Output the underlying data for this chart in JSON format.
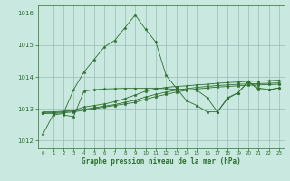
{
  "xlabel": "Graphe pression niveau de la mer (hPa)",
  "background_color": "#c8e8e0",
  "grid_color": "#9abcb8",
  "line_color": "#2d6e2d",
  "xlim": [
    -0.5,
    23.5
  ],
  "ylim": [
    1011.75,
    1016.25
  ],
  "yticks": [
    1012,
    1013,
    1014,
    1015,
    1016
  ],
  "xticks": [
    0,
    1,
    2,
    3,
    4,
    5,
    6,
    7,
    8,
    9,
    10,
    11,
    12,
    13,
    14,
    15,
    16,
    17,
    18,
    19,
    20,
    21,
    22,
    23
  ],
  "series1_x": [
    0,
    1,
    2,
    3,
    4,
    5,
    6,
    7,
    8,
    9,
    10,
    11,
    12,
    13,
    14,
    15,
    16,
    17,
    18,
    19,
    20,
    21,
    22,
    23
  ],
  "series1_y": [
    1012.2,
    1012.8,
    1012.85,
    1013.6,
    1014.15,
    1014.55,
    1014.95,
    1015.15,
    1015.55,
    1015.95,
    1015.5,
    1015.1,
    1014.05,
    1013.65,
    1013.25,
    1013.1,
    1012.9,
    1012.9,
    1013.35,
    1013.5,
    1013.85,
    1013.6,
    1013.6,
    1013.65
  ],
  "series2_x": [
    0,
    1,
    2,
    3,
    4,
    5,
    6,
    7,
    8,
    9,
    10,
    11,
    12,
    13,
    14,
    15,
    16,
    17,
    18,
    19,
    20,
    21,
    22,
    23
  ],
  "series2_y": [
    1012.85,
    1012.85,
    1012.87,
    1012.9,
    1012.95,
    1013.0,
    1013.05,
    1013.1,
    1013.15,
    1013.2,
    1013.3,
    1013.38,
    1013.45,
    1013.52,
    1013.58,
    1013.62,
    1013.65,
    1013.68,
    1013.7,
    1013.72,
    1013.74,
    1013.75,
    1013.76,
    1013.77
  ],
  "series3_x": [
    0,
    1,
    2,
    3,
    4,
    5,
    6,
    7,
    8,
    9,
    10,
    11,
    12,
    13,
    14,
    15,
    16,
    17,
    18,
    19,
    20,
    21,
    22,
    23
  ],
  "series3_y": [
    1012.87,
    1012.87,
    1012.9,
    1012.93,
    1012.98,
    1013.03,
    1013.08,
    1013.13,
    1013.2,
    1013.27,
    1013.37,
    1013.45,
    1013.52,
    1013.58,
    1013.63,
    1013.67,
    1013.7,
    1013.73,
    1013.75,
    1013.77,
    1013.78,
    1013.79,
    1013.8,
    1013.81
  ],
  "series4_x": [
    0,
    1,
    2,
    3,
    4,
    5,
    6,
    7,
    8,
    9,
    10,
    11,
    12,
    13,
    14,
    15,
    16,
    17,
    18,
    19,
    20,
    21,
    22,
    23
  ],
  "series4_y": [
    1012.9,
    1012.9,
    1012.92,
    1012.95,
    1013.05,
    1013.1,
    1013.15,
    1013.22,
    1013.32,
    1013.43,
    1013.55,
    1013.62,
    1013.67,
    1013.7,
    1013.72,
    1013.75,
    1013.77,
    1013.8,
    1013.82,
    1013.84,
    1013.86,
    1013.87,
    1013.88,
    1013.9
  ],
  "series5_x": [
    2,
    3,
    4,
    5,
    6,
    7,
    8,
    9,
    10,
    11,
    12,
    13,
    14,
    15,
    16,
    17,
    18,
    19,
    20,
    21,
    22,
    23
  ],
  "series5_y": [
    1012.8,
    1012.75,
    1013.55,
    1013.6,
    1013.62,
    1013.63,
    1013.64,
    1013.64,
    1013.64,
    1013.64,
    1013.63,
    1013.61,
    1013.6,
    1013.58,
    1013.35,
    1012.9,
    1013.32,
    1013.5,
    1013.85,
    1013.65,
    1013.6,
    1013.65
  ]
}
